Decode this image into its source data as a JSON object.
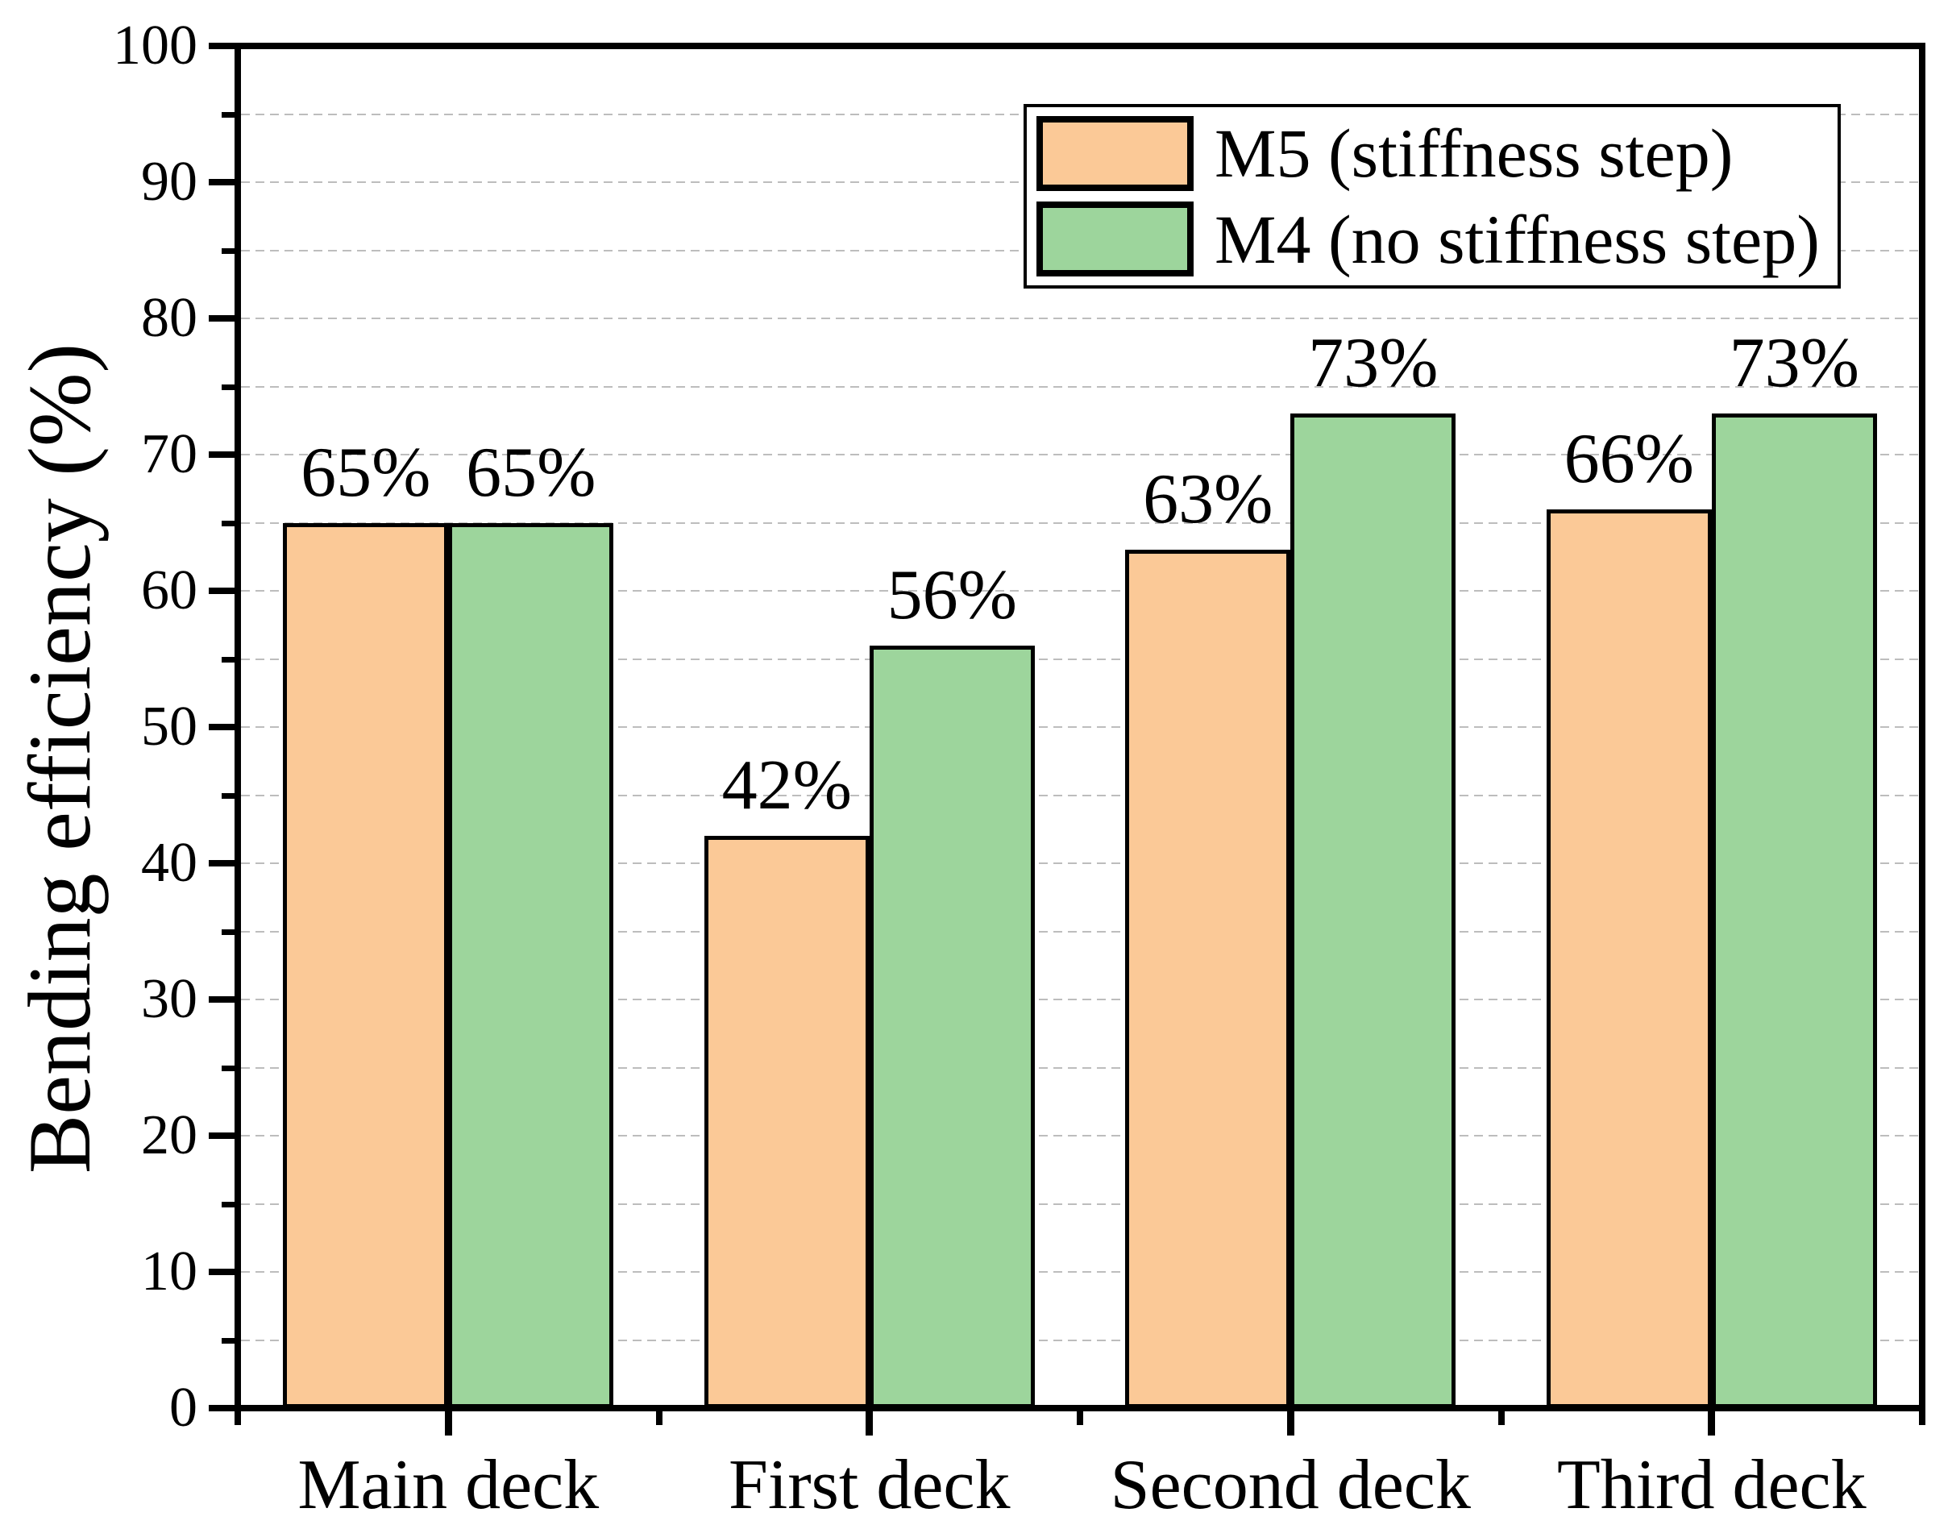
{
  "figure": {
    "background": "#ffffff"
  },
  "chart_data": {
    "type": "bar",
    "title": "",
    "categories": [
      "Main deck",
      "First deck",
      "Second deck",
      "Third deck"
    ],
    "series": [
      {
        "name": "M5 (stiffness step)",
        "color": "#FBC997",
        "values": [
          65,
          42,
          63,
          66
        ],
        "data_labels": [
          "65%",
          "42%",
          "63%",
          "66%"
        ]
      },
      {
        "name": "M4 (no stiffness step)",
        "color": "#9DD59C",
        "values": [
          65,
          56,
          73,
          73
        ],
        "data_labels": [
          "65%",
          "56%",
          "73%",
          "73%"
        ]
      }
    ],
    "xlabel": "",
    "ylabel": "Bending efficiency (%)",
    "ylim": [
      0,
      100
    ],
    "ytick_step": 10,
    "yminor_step": 5,
    "ytick_labels": [
      "0",
      "10",
      "20",
      "30",
      "40",
      "50",
      "60",
      "70",
      "80",
      "90",
      "100"
    ],
    "grid": {
      "horizontal": true,
      "every": 5,
      "style": "dashed",
      "color": "#bdbdbd"
    },
    "legend_position": "top-right",
    "bar_edge_color": "#000000"
  }
}
